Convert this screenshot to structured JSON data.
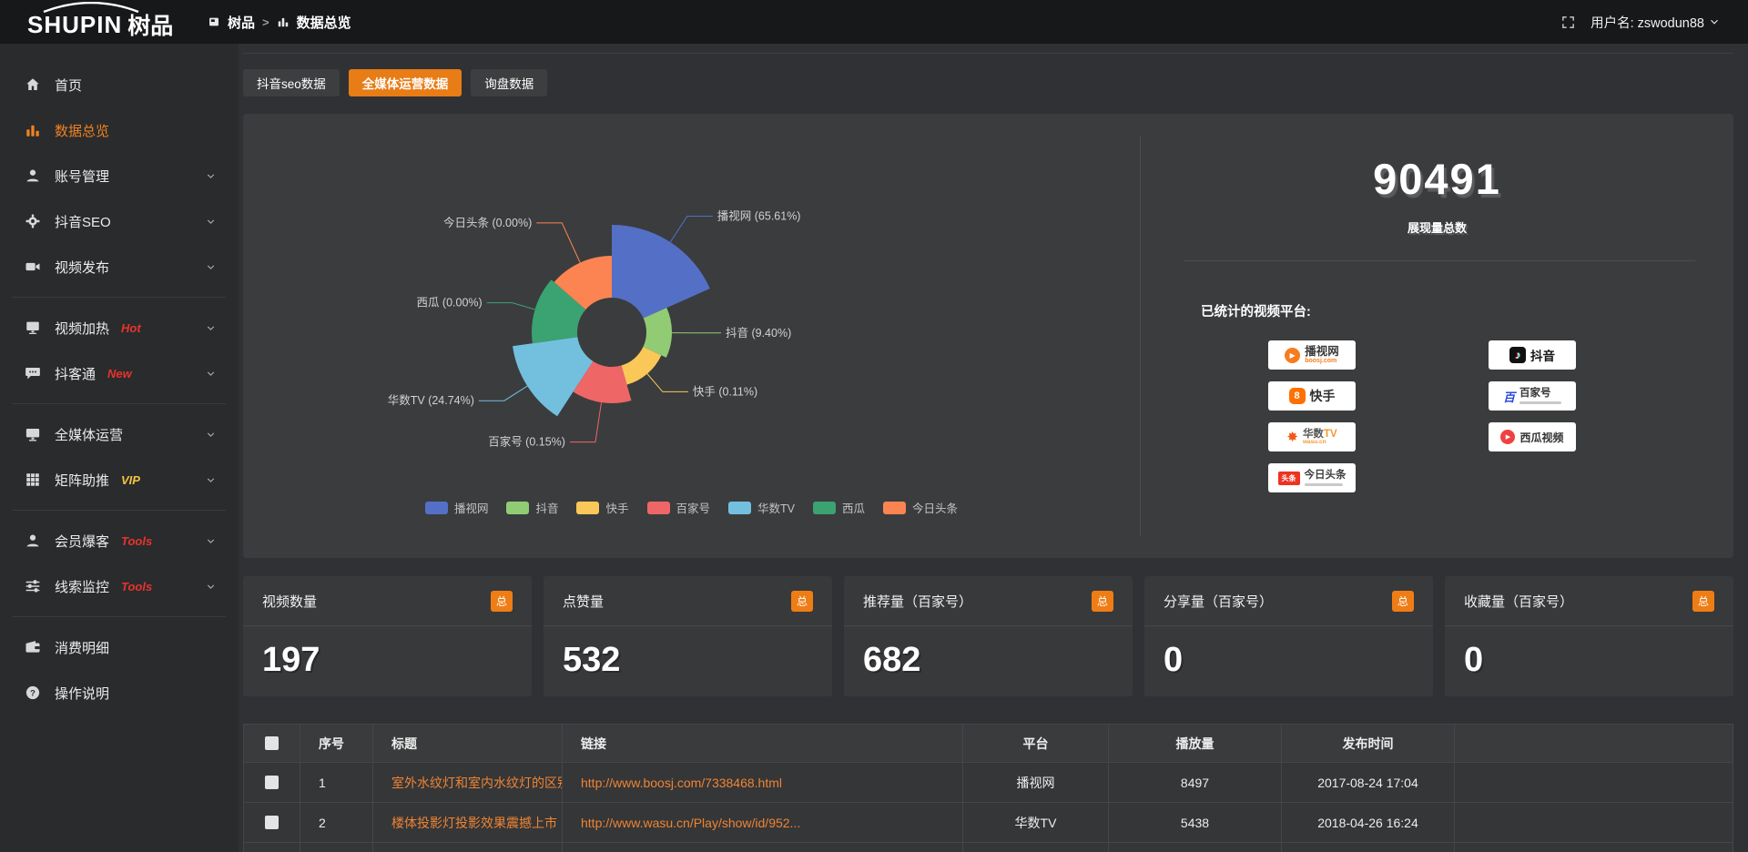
{
  "topbar": {
    "logo_en": "SHUPIN",
    "logo_cn": "树品",
    "breadcrumb": {
      "root": "树品",
      "sep": ">",
      "current": "数据总览"
    },
    "username": "用户名: zswodun88"
  },
  "sidebar": {
    "items": [
      {
        "label": "首页",
        "icon": "home"
      },
      {
        "label": "数据总览",
        "icon": "bar-chart",
        "active": true
      },
      {
        "label": "账号管理",
        "icon": "user",
        "expandable": true
      },
      {
        "label": "抖音SEO",
        "icon": "gear",
        "expandable": true
      },
      {
        "label": "视频发布",
        "icon": "video-publish",
        "expandable": true
      },
      {
        "divider": true
      },
      {
        "label": "视频加热",
        "icon": "video-heat",
        "tag": "Hot",
        "tag_color": "#e8332c",
        "expandable": true
      },
      {
        "label": "抖客通",
        "icon": "chat",
        "tag": "New",
        "tag_color": "#e8332c",
        "expandable": true
      },
      {
        "divider": true
      },
      {
        "label": "全媒体运营",
        "icon": "monitor",
        "expandable": true
      },
      {
        "label": "矩阵助推",
        "icon": "grid",
        "tag": "VIP",
        "tag_color": "#f5c242",
        "expandable": true
      },
      {
        "divider": true
      },
      {
        "label": "会员爆客",
        "icon": "user-group",
        "tag": "Tools",
        "tag_color": "#e8332c",
        "expandable": true
      },
      {
        "label": "线索监控",
        "icon": "sliders",
        "tag": "Tools",
        "tag_color": "#e8332c",
        "expandable": true
      },
      {
        "divider": true
      },
      {
        "label": "消费明细",
        "icon": "wallet"
      },
      {
        "label": "操作说明",
        "icon": "question"
      }
    ]
  },
  "tabs": [
    {
      "label": "抖音seo数据",
      "active": false
    },
    {
      "label": "全媒体运营数据",
      "active": true
    },
    {
      "label": "询盘数据",
      "active": false
    }
  ],
  "chart_data": {
    "type": "pie",
    "variant": "nightingale-rose",
    "legend_position": "bottom",
    "series": [
      {
        "name": "播视网",
        "value": 65.61,
        "color": "#5470c6"
      },
      {
        "name": "抖音",
        "value": 9.4,
        "color": "#91cc75"
      },
      {
        "name": "快手",
        "value": 0.11,
        "color": "#fac858"
      },
      {
        "name": "百家号",
        "value": 0.15,
        "color": "#ee6666"
      },
      {
        "name": "华数TV",
        "value": 24.74,
        "color": "#73c0de"
      },
      {
        "name": "西瓜",
        "value": 0.0,
        "color": "#3ba272"
      },
      {
        "name": "今日头条",
        "value": 0.0,
        "color": "#fc8452"
      }
    ],
    "labels": [
      "播视网 (65.61%)",
      "抖音 (9.40%)",
      "快手 (0.11%)",
      "百家号 (0.15%)",
      "华数TV (24.74%)",
      "西瓜 (0.00%)",
      "今日头条 (0.00%)"
    ],
    "render": {
      "start_angle": -90,
      "inner_radius": 38,
      "angles": [
        66,
        49,
        49,
        49,
        49,
        49,
        49
      ],
      "radii": [
        118,
        66,
        60,
        78,
        110,
        88,
        84
      ],
      "line_len": [
        34,
        26,
        26,
        44,
        30,
        26,
        48
      ]
    }
  },
  "summary": {
    "total_value": "90491",
    "total_label": "展现量总数",
    "platforms_label": "已统计的视频平台:",
    "platform_columns": [
      [
        "boosj",
        "kuaishou",
        "wasu",
        "toutiao"
      ],
      [
        "douyin",
        "baijiahao",
        "xigua"
      ]
    ],
    "platforms": {
      "boosj": {
        "name": "播视网",
        "sub": "boosj.com"
      },
      "kuaishou": {
        "name": "快手"
      },
      "wasu": {
        "name": "华数TV",
        "sub": "wasu.cn"
      },
      "toutiao": {
        "name": "今日头条",
        "badge": "头条"
      },
      "douyin": {
        "name": "抖音"
      },
      "baijiahao": {
        "name": "百家号"
      },
      "xigua": {
        "name": "西瓜视频"
      }
    }
  },
  "stat_cards": [
    {
      "title": "视频数量",
      "badge": "总",
      "value": "197"
    },
    {
      "title": "点赞量",
      "badge": "总",
      "value": "532"
    },
    {
      "title": "推荐量（百家号）",
      "badge": "总",
      "value": "682"
    },
    {
      "title": "分享量（百家号）",
      "badge": "总",
      "value": "0"
    },
    {
      "title": "收藏量（百家号）",
      "badge": "总",
      "value": "0"
    }
  ],
  "table": {
    "columns": [
      "序号",
      "标题",
      "链接",
      "平台",
      "播放量",
      "发布时间"
    ],
    "rows": [
      {
        "index": "1",
        "title": "室外水纹灯和室内水纹灯的区别和简介",
        "link": "http://www.boosj.com/7338468.html",
        "platform": "播视网",
        "plays": "8497",
        "time": "2017-08-24 17:04"
      },
      {
        "index": "2",
        "title": "楼体投影灯投影效果震撼上市",
        "link": "http://www.wasu.cn/Play/show/id/952...",
        "platform": "华数TV",
        "plays": "5438",
        "time": "2018-04-26 16:24"
      },
      {
        "index": "",
        "title": "",
        "link": "",
        "platform": "",
        "plays": "",
        "time": ""
      }
    ]
  },
  "colors": {
    "accent": "#e87c16",
    "link": "#ef8432",
    "sidebar_active": "#ee8221"
  }
}
